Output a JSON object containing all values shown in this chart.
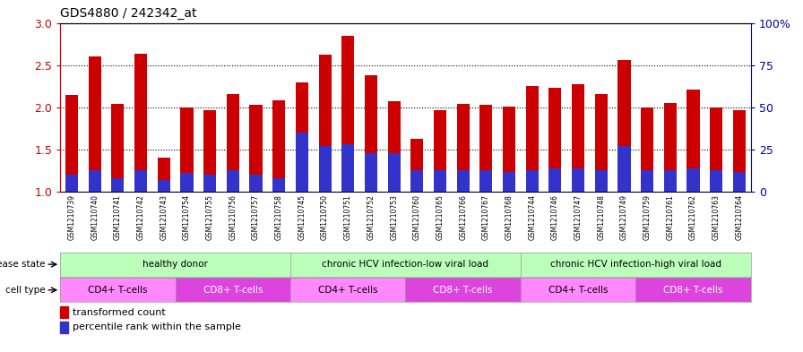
{
  "title": "GDS4880 / 242342_at",
  "samples": [
    "GSM1210739",
    "GSM1210740",
    "GSM1210741",
    "GSM1210742",
    "GSM1210743",
    "GSM1210754",
    "GSM1210755",
    "GSM1210756",
    "GSM1210757",
    "GSM1210758",
    "GSM1210745",
    "GSM1210750",
    "GSM1210751",
    "GSM1210752",
    "GSM1210753",
    "GSM1210760",
    "GSM1210765",
    "GSM1210766",
    "GSM1210767",
    "GSM1210768",
    "GSM1210744",
    "GSM1210746",
    "GSM1210747",
    "GSM1210748",
    "GSM1210749",
    "GSM1210759",
    "GSM1210761",
    "GSM1210762",
    "GSM1210763",
    "GSM1210764"
  ],
  "transformed_count": [
    2.15,
    2.6,
    2.04,
    2.63,
    1.4,
    2.0,
    1.97,
    2.16,
    2.03,
    2.08,
    2.3,
    2.62,
    2.85,
    2.38,
    2.07,
    1.63,
    1.97,
    2.04,
    2.03,
    2.01,
    2.25,
    2.23,
    2.27,
    2.16,
    2.56,
    2.0,
    2.05,
    2.21,
    2.0,
    1.97
  ],
  "percentile_pct": [
    10,
    13,
    8,
    13,
    7,
    11,
    10,
    13,
    10,
    8,
    35,
    27,
    28,
    23,
    23,
    13,
    13,
    13,
    13,
    12,
    13,
    14,
    14,
    13,
    27,
    13,
    13,
    14,
    13,
    12
  ],
  "ylim_left": [
    1.0,
    3.0
  ],
  "ylim_right": [
    0,
    100
  ],
  "yticks_left": [
    1.0,
    1.5,
    2.0,
    2.5,
    3.0
  ],
  "yticks_right": [
    0,
    25,
    50,
    75,
    100
  ],
  "yticklabels_right": [
    "0",
    "25",
    "50",
    "75",
    "100%"
  ],
  "bar_color": "#CC0000",
  "percentile_color": "#3333CC",
  "bar_width": 0.55,
  "left_tick_color": "#CC0000",
  "right_tick_color": "#0000AA",
  "disease_groups": [
    {
      "label": "healthy donor",
      "start": 0,
      "end": 9,
      "color": "#BBFFBB"
    },
    {
      "label": "chronic HCV infection-low viral load",
      "start": 10,
      "end": 19,
      "color": "#BBFFBB"
    },
    {
      "label": "chronic HCV infection-high viral load",
      "start": 20,
      "end": 29,
      "color": "#BBFFBB"
    }
  ],
  "cell_type_groups": [
    {
      "label": "CD4+ T-cells",
      "start": 0,
      "end": 4,
      "color": "#FF88FF"
    },
    {
      "label": "CD8+ T-cells",
      "start": 5,
      "end": 9,
      "color": "#DD44DD"
    },
    {
      "label": "CD4+ T-cells",
      "start": 10,
      "end": 14,
      "color": "#FF88FF"
    },
    {
      "label": "CD8+ T-cells",
      "start": 15,
      "end": 19,
      "color": "#DD44DD"
    },
    {
      "label": "CD4+ T-cells",
      "start": 20,
      "end": 24,
      "color": "#FF88FF"
    },
    {
      "label": "CD8+ T-cells",
      "start": 25,
      "end": 29,
      "color": "#DD44DD"
    }
  ],
  "legend_items": [
    {
      "label": "transformed count",
      "color": "#CC0000"
    },
    {
      "label": "percentile rank within the sample",
      "color": "#3333CC"
    }
  ]
}
